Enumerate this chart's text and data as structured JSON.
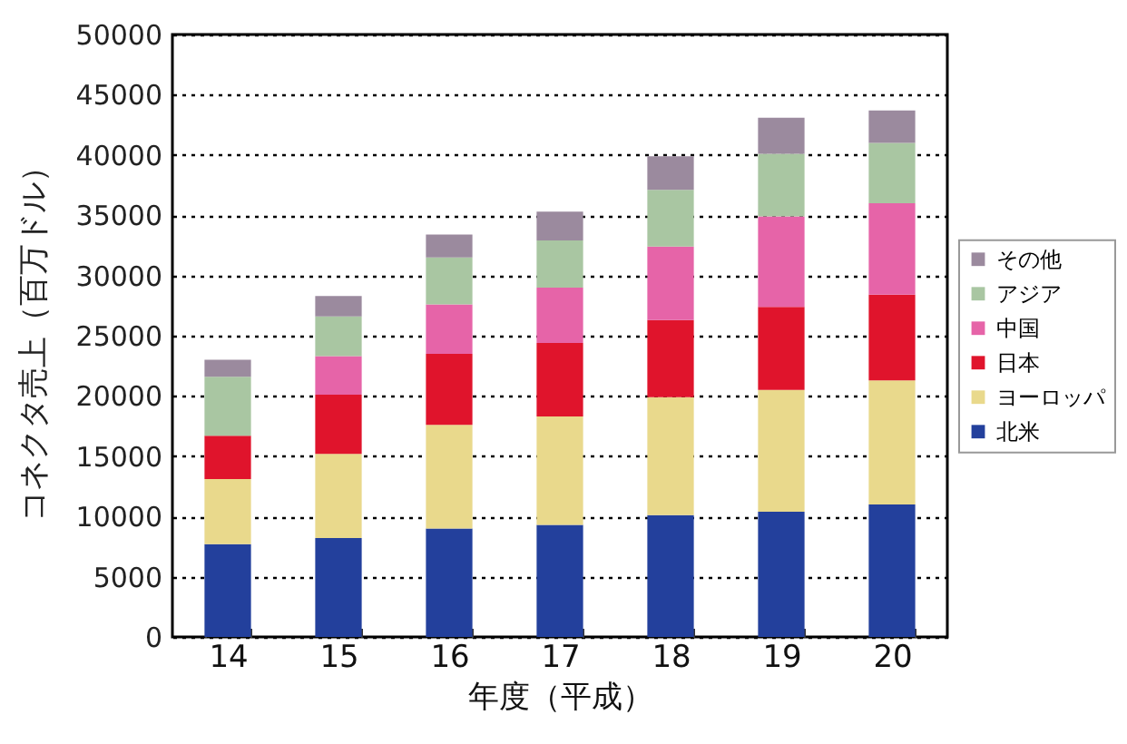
{
  "chart_data": {
    "type": "bar",
    "stacked": true,
    "xlabel": "年度（平成）",
    "ylabel": "コネクタ売上（百万ドル）",
    "categories": [
      "14",
      "15",
      "16",
      "17",
      "18",
      "19",
      "20"
    ],
    "series": [
      {
        "name": "北米",
        "color": "#23409c",
        "values": [
          7700,
          8200,
          9000,
          9300,
          10100,
          10400,
          11000
        ]
      },
      {
        "name": "ヨーロッパ",
        "color": "#e9d98c",
        "values": [
          5400,
          7000,
          8600,
          9000,
          9800,
          10100,
          10300
        ]
      },
      {
        "name": "日本",
        "color": "#e0142c",
        "values": [
          3600,
          4900,
          5900,
          6100,
          6400,
          6900,
          7100
        ]
      },
      {
        "name": "中国",
        "color": "#e664a8",
        "values": [
          null,
          3200,
          4100,
          4600,
          6100,
          7500,
          7600
        ]
      },
      {
        "name": "アジア",
        "color": "#a9c6a2",
        "values": [
          4900,
          3300,
          3900,
          3900,
          4700,
          5200,
          5000
        ]
      },
      {
        "name": "その他",
        "color": "#9b8a9e",
        "values": [
          1400,
          1700,
          1900,
          2400,
          2800,
          3000,
          2700
        ]
      }
    ],
    "ylim": [
      0,
      50000
    ],
    "yticks": [
      0,
      5000,
      10000,
      15000,
      20000,
      25000,
      30000,
      35000,
      40000,
      45000,
      50000
    ],
    "grid": "y",
    "legend": "right"
  }
}
